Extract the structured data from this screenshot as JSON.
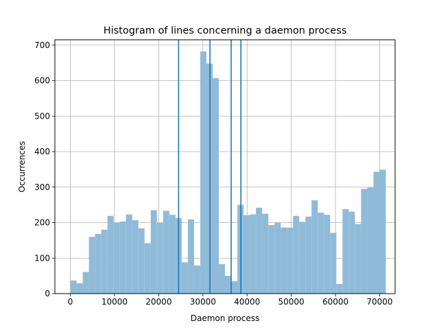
{
  "chart_data": {
    "type": "bar",
    "title": "Histogram of lines concerning a daemon process",
    "xlabel": "Daemon process",
    "ylabel": "Occurrences",
    "xlim": [
      -3500,
      73500
    ],
    "ylim": [
      0,
      715
    ],
    "xticks": [
      0,
      10000,
      20000,
      30000,
      40000,
      50000,
      60000,
      70000
    ],
    "xtick_labels": [
      "0",
      "10000",
      "20000",
      "30000",
      "40000",
      "50000",
      "60000",
      "70000"
    ],
    "yticks": [
      0,
      100,
      200,
      300,
      400,
      500,
      600,
      700
    ],
    "ytick_labels": [
      "0",
      "100",
      "200",
      "300",
      "400",
      "500",
      "600",
      "700"
    ],
    "grid": true,
    "bar_color": "#8fbbd9",
    "line_color": "#1f77b4",
    "bins": {
      "start": 0,
      "width": 1400,
      "counts": [
        37,
        29,
        61,
        160,
        168,
        180,
        219,
        199,
        203,
        223,
        207,
        184,
        142,
        235,
        199,
        233,
        222,
        213,
        88,
        209,
        79,
        682,
        648,
        607,
        83,
        50,
        35,
        250,
        221,
        223,
        242,
        225,
        193,
        199,
        186,
        186,
        219,
        202,
        217,
        263,
        228,
        222,
        171,
        27,
        238,
        231,
        196,
        295,
        299,
        343,
        349
      ]
    },
    "vertical_lines": [
      24500,
      31600,
      36400,
      38600
    ]
  }
}
